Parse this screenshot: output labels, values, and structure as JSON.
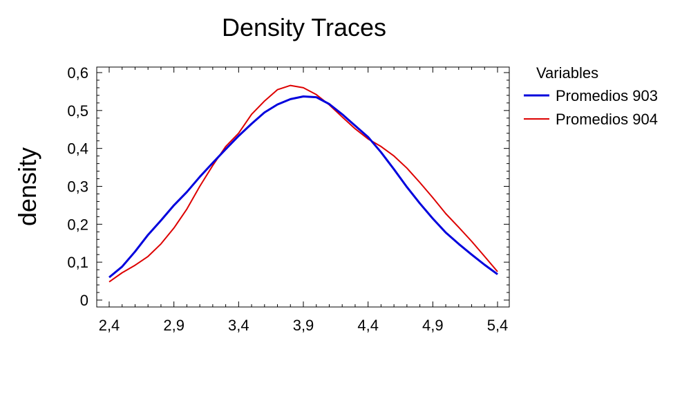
{
  "chart_data": {
    "type": "line",
    "title": "Density Traces",
    "xlabel": "",
    "ylabel": "density",
    "xlim": [
      2.4,
      5.4
    ],
    "ylim": [
      0,
      0.6
    ],
    "x_ticks": [
      2.4,
      2.9,
      3.4,
      3.9,
      4.4,
      4.9,
      5.4
    ],
    "x_tick_labels": [
      "2,4",
      "2,9",
      "3,4",
      "3,9",
      "4,4",
      "4,9",
      "5,4"
    ],
    "y_ticks": [
      0,
      0.1,
      0.2,
      0.3,
      0.4,
      0.5,
      0.6
    ],
    "y_tick_labels": [
      "0",
      "0,1",
      "0,2",
      "0,3",
      "0,4",
      "0,5",
      "0,6"
    ],
    "grid": false,
    "legend": {
      "title": "Variables",
      "position": "right"
    },
    "series": [
      {
        "name": "Promedios 903",
        "color": "#0000dd",
        "x": [
          2.4,
          2.5,
          2.6,
          2.7,
          2.8,
          2.9,
          3.0,
          3.1,
          3.2,
          3.3,
          3.4,
          3.5,
          3.6,
          3.7,
          3.8,
          3.9,
          4.0,
          4.1,
          4.2,
          4.3,
          4.4,
          4.5,
          4.6,
          4.7,
          4.8,
          4.9,
          5.0,
          5.1,
          5.2,
          5.3,
          5.4
        ],
        "y": [
          0.06,
          0.088,
          0.128,
          0.172,
          0.21,
          0.25,
          0.285,
          0.325,
          0.362,
          0.398,
          0.433,
          0.465,
          0.495,
          0.516,
          0.53,
          0.537,
          0.535,
          0.517,
          0.49,
          0.46,
          0.43,
          0.39,
          0.345,
          0.298,
          0.255,
          0.215,
          0.178,
          0.148,
          0.12,
          0.093,
          0.068
        ]
      },
      {
        "name": "Promedios 904",
        "color": "#dd0000",
        "x": [
          2.4,
          2.5,
          2.6,
          2.7,
          2.8,
          2.9,
          3.0,
          3.1,
          3.2,
          3.3,
          3.4,
          3.5,
          3.6,
          3.7,
          3.8,
          3.9,
          4.0,
          4.1,
          4.2,
          4.3,
          4.4,
          4.5,
          4.6,
          4.7,
          4.8,
          4.9,
          5.0,
          5.1,
          5.2,
          5.3,
          5.4
        ],
        "y": [
          0.048,
          0.072,
          0.092,
          0.115,
          0.148,
          0.19,
          0.24,
          0.3,
          0.355,
          0.405,
          0.44,
          0.49,
          0.525,
          0.555,
          0.566,
          0.56,
          0.542,
          0.515,
          0.483,
          0.452,
          0.425,
          0.405,
          0.38,
          0.348,
          0.31,
          0.27,
          0.228,
          0.192,
          0.155,
          0.115,
          0.075
        ]
      }
    ]
  }
}
